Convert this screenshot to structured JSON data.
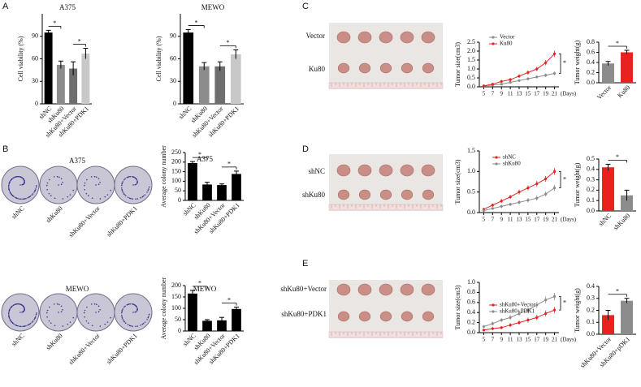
{
  "figure": {
    "panel_labels": [
      "A",
      "B",
      "C",
      "D",
      "E"
    ],
    "colony": {
      "titles": [
        "A375",
        "MEWO"
      ],
      "plate_labels": [
        "shNC",
        "shKu80",
        "shKu80+Vector",
        "shKu80+PDK1"
      ]
    },
    "tumor_photos": [
      {
        "rows": [
          "Vector",
          "Ku80"
        ]
      },
      {
        "rows": [
          "shNC",
          "shKu80"
        ]
      },
      {
        "rows": [
          "shKu80+Vector",
          "shKu80+PDK1"
        ]
      }
    ]
  },
  "chart_data": [
    {
      "type": "bar",
      "title": "A375",
      "y_label": "Cell viability (%)",
      "categories": [
        "shNC",
        "shKu80",
        "shKu80+Vector",
        "shKu80+PDK1"
      ],
      "values": [
        95,
        52,
        47,
        67
      ],
      "errors": [
        3,
        5,
        9,
        7
      ],
      "colors": [
        "#000000",
        "#8c8c8c",
        "#6e6e6e",
        "#c8c8c8"
      ],
      "ylim": [
        0,
        120
      ],
      "yticks": [
        0,
        30,
        60,
        90
      ],
      "significance": "*"
    },
    {
      "type": "bar",
      "title": "MEWO",
      "y_label": "Cell viability (%)",
      "categories": [
        "shNC",
        "shKu80",
        "shKu80+Vector",
        "shKu80+PDK1"
      ],
      "values": [
        95,
        50,
        50,
        66
      ],
      "errors": [
        4,
        5,
        6,
        6
      ],
      "colors": [
        "#000000",
        "#8c8c8c",
        "#6e6e6e",
        "#c8c8c8"
      ],
      "ylim": [
        0,
        120
      ],
      "yticks": [
        0,
        30,
        60,
        90
      ],
      "significance": "*"
    },
    {
      "type": "bar",
      "title": "A375",
      "y_label": "Average colony number",
      "categories": [
        "shNC",
        "shKu80",
        "shKu80+Vector",
        "shKu80+PDK1"
      ],
      "values": [
        195,
        83,
        80,
        138
      ],
      "errors": [
        8,
        12,
        6,
        15
      ],
      "colors": [
        "#000000",
        "#000000",
        "#000000",
        "#000000"
      ],
      "ylim": [
        0,
        250
      ],
      "yticks": [
        0,
        50,
        100,
        150,
        200,
        250
      ],
      "significance": "*"
    },
    {
      "type": "bar",
      "title": "MEWO",
      "y_label": "Average colony number",
      "categories": [
        "shNC",
        "shKu80",
        "shKu80+Vector",
        "shKu80+PDK1"
      ],
      "values": [
        165,
        45,
        47,
        97
      ],
      "errors": [
        14,
        5,
        13,
        8
      ],
      "colors": [
        "#000000",
        "#000000",
        "#000000",
        "#000000"
      ],
      "ylim": [
        0,
        200
      ],
      "yticks": [
        0,
        50,
        100,
        150,
        200
      ],
      "significance": "*"
    },
    {
      "type": "line",
      "y_label": "Tumor size(cm3)",
      "x_unit": "(Days)",
      "x": [
        5,
        7,
        9,
        11,
        13,
        15,
        17,
        19,
        21
      ],
      "xlim": [
        4,
        22
      ],
      "xticks": [
        5,
        7,
        9,
        11,
        13,
        15,
        17,
        19,
        21
      ],
      "ylim": [
        0,
        2.5
      ],
      "yticks": [
        {
          "value": 0,
          "label": "0.0"
        },
        {
          "value": 0.5,
          "label": "0.5"
        },
        {
          "value": 1,
          "label": "1.0"
        },
        {
          "value": 1.5,
          "label": "1.5"
        },
        {
          "value": 2,
          "label": "2.0"
        },
        {
          "value": 2.5,
          "label": "2.5"
        }
      ],
      "series": [
        {
          "name": "Vector",
          "color": "#8c8c8c",
          "values": [
            0.05,
            0.1,
            0.15,
            0.25,
            0.35,
            0.45,
            0.55,
            0.65,
            0.75
          ],
          "errors": [
            0.02,
            0.04,
            0.05,
            0.06,
            0.07,
            0.08,
            0.08,
            0.1,
            0.1
          ]
        },
        {
          "name": "Ku80",
          "color": "#e8231f",
          "values": [
            0.05,
            0.15,
            0.3,
            0.4,
            0.6,
            0.8,
            1.0,
            1.35,
            1.85
          ],
          "errors": [
            0.02,
            0.06,
            0.08,
            0.1,
            0.1,
            0.12,
            0.12,
            0.15,
            0.18
          ]
        }
      ],
      "significance": "*"
    },
    {
      "type": "bar",
      "y_label": "Tumor weight(g)",
      "categories": [
        "Vector",
        "Ku80"
      ],
      "values": [
        0.38,
        0.6
      ],
      "errors": [
        0.04,
        0.04
      ],
      "colors": [
        "#8c8c8c",
        "#e8231f"
      ],
      "ylim": [
        0,
        0.8
      ],
      "yticks": [
        {
          "value": 0,
          "label": "0.0"
        },
        {
          "value": 0.2,
          "label": "0.2"
        },
        {
          "value": 0.4,
          "label": "0.4"
        },
        {
          "value": 0.6,
          "label": "0.6"
        },
        {
          "value": 0.8,
          "label": "0.8"
        }
      ],
      "significance": "*"
    },
    {
      "type": "line",
      "y_label": "Tumor  size(cm3)",
      "x_unit": "(Days)",
      "x": [
        5,
        7,
        9,
        11,
        13,
        15,
        17,
        19,
        21
      ],
      "xlim": [
        4,
        22
      ],
      "xticks": [
        5,
        7,
        9,
        11,
        13,
        15,
        17,
        19,
        21
      ],
      "ylim": [
        0,
        1.5
      ],
      "yticks": [
        {
          "value": 0,
          "label": "0.0"
        },
        {
          "value": 0.5,
          "label": "0.5"
        },
        {
          "value": 1,
          "label": "1.0"
        },
        {
          "value": 1.5,
          "label": "1.5"
        }
      ],
      "series": [
        {
          "name": "shNC",
          "color": "#e8231f",
          "values": [
            0.08,
            0.18,
            0.28,
            0.38,
            0.5,
            0.6,
            0.7,
            0.82,
            1.0
          ],
          "errors": [
            0.03,
            0.04,
            0.05,
            0.05,
            0.06,
            0.06,
            0.07,
            0.07,
            0.08
          ]
        },
        {
          "name": "shKu80",
          "color": "#8c8c8c",
          "values": [
            0.05,
            0.1,
            0.15,
            0.2,
            0.25,
            0.3,
            0.35,
            0.45,
            0.6
          ],
          "errors": [
            0.02,
            0.03,
            0.04,
            0.04,
            0.05,
            0.05,
            0.06,
            0.06,
            0.07
          ]
        }
      ],
      "significance": "*"
    },
    {
      "type": "bar",
      "y_label": "Tumor weight(g)",
      "categories": [
        "shNC",
        "shKu80"
      ],
      "values": [
        0.42,
        0.15
      ],
      "errors": [
        0.03,
        0.05
      ],
      "colors": [
        "#e8231f",
        "#8c8c8c"
      ],
      "ylim": [
        0,
        0.5
      ],
      "yticks": [
        {
          "value": 0,
          "label": "0.0"
        },
        {
          "value": 0.1,
          "label": "0.1"
        },
        {
          "value": 0.2,
          "label": "0.2"
        },
        {
          "value": 0.3,
          "label": "0.3"
        },
        {
          "value": 0.4,
          "label": "0.4"
        },
        {
          "value": 0.5,
          "label": "0.5"
        }
      ],
      "significance": "*"
    },
    {
      "type": "line",
      "y_label": "Tumor  size(cm3)",
      "x_unit": "(Days)",
      "x": [
        5,
        7,
        9,
        11,
        13,
        15,
        17,
        19,
        21
      ],
      "xlim": [
        4,
        22
      ],
      "xticks": [
        5,
        7,
        9,
        11,
        13,
        15,
        17,
        19,
        21
      ],
      "ylim": [
        0,
        1
      ],
      "yticks": [
        {
          "value": 0,
          "label": "0.0"
        },
        {
          "value": 0.2,
          "label": "0.2"
        },
        {
          "value": 0.4,
          "label": "0.4"
        },
        {
          "value": 0.6,
          "label": "0.6"
        },
        {
          "value": 0.8,
          "label": "0.8"
        },
        {
          "value": 1,
          "label": "1.0"
        }
      ],
      "series": [
        {
          "name": "shKu80+Vector",
          "color": "#e8231f",
          "values": [
            0.05,
            0.08,
            0.1,
            0.15,
            0.2,
            0.25,
            0.3,
            0.38,
            0.45
          ],
          "errors": [
            0.02,
            0.03,
            0.03,
            0.04,
            0.04,
            0.05,
            0.05,
            0.06,
            0.06
          ]
        },
        {
          "name": "shKu80+PDK1",
          "color": "#8c8c8c",
          "values": [
            0.12,
            0.18,
            0.25,
            0.3,
            0.38,
            0.45,
            0.55,
            0.65,
            0.72
          ],
          "errors": [
            0.03,
            0.04,
            0.04,
            0.05,
            0.05,
            0.06,
            0.06,
            0.07,
            0.07
          ]
        }
      ],
      "significance": "*"
    },
    {
      "type": "bar",
      "y_label": "Tumor weight(g)",
      "categories": [
        "shKu80+Vector",
        "shKu80+pDK1"
      ],
      "values": [
        0.16,
        0.28
      ],
      "errors": [
        0.04,
        0.02
      ],
      "colors": [
        "#e8231f",
        "#8c8c8c"
      ],
      "ylim": [
        0,
        0.4
      ],
      "yticks": [
        {
          "value": 0,
          "label": "0.0"
        },
        {
          "value": 0.1,
          "label": "0.1"
        },
        {
          "value": 0.2,
          "label": "0.2"
        },
        {
          "value": 0.3,
          "label": "0.3"
        },
        {
          "value": 0.4,
          "label": "0.4"
        }
      ],
      "significance": "*"
    }
  ]
}
